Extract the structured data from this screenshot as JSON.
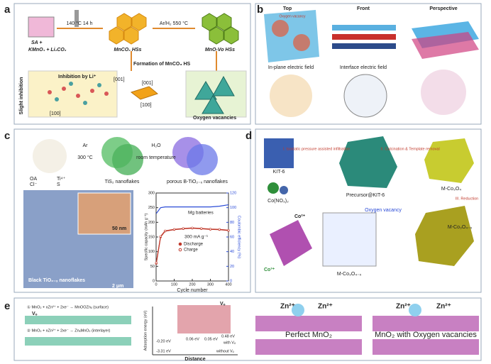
{
  "panels": {
    "a": {
      "label": "a",
      "texts": [
        "SA +",
        "KMnO₄ + Li₂CO₃",
        "140 °C 14 h",
        "MnCO₃ HSs",
        "Ar/H₂ 550 °C",
        "MnO-Vo HSs",
        "Formation of MnCO₃ HS",
        "Inhibition by Li⁺",
        "Slight inhibition",
        "[001]",
        "[100]",
        "[001]",
        "[100]",
        "Oxygen vacancies"
      ]
    },
    "b": {
      "label": "b",
      "texts": [
        "Top",
        "Front",
        "Perspective",
        "In-plane electric field",
        "Interface electric field",
        "Oxygen vacancy"
      ]
    },
    "c": {
      "label": "c",
      "texts": [
        "OA",
        "Ti⁴⁺",
        "Cl⁻",
        "S",
        "Ar",
        "300 °C",
        "H₂O",
        "room temperature",
        "TiS₂ nanoflakes",
        "porous B-TiO₂₋ₓ nanoflakes",
        "50 nm",
        "Black TiO₂₋ₓ nanoflakes",
        "2 μm"
      ],
      "chart": {
        "type": "line",
        "x_label": "Cycle number",
        "y_label": "Specific capacity (mAh g⁻¹)",
        "y2_label": "Coulombic efficiency (%)",
        "annotations": [
          "Mg batteries",
          "300 mA g⁻¹"
        ],
        "x": [
          1,
          25,
          50,
          100,
          150,
          200,
          250,
          300,
          350,
          400
        ],
        "xlim": [
          0,
          400
        ],
        "xticks": [
          0,
          100,
          200,
          300,
          400
        ],
        "ylim": [
          0,
          300
        ],
        "yticks": [
          0,
          50,
          100,
          150,
          200,
          250,
          300
        ],
        "y2lim": [
          0,
          120
        ],
        "y2ticks": [
          0,
          20,
          40,
          60,
          80,
          100,
          120
        ],
        "series": [
          {
            "name": "Discharge",
            "color": "#c0392b",
            "values": [
              60,
              150,
              170,
              175,
              178,
              180,
              178,
              176,
              175,
              172
            ]
          },
          {
            "name": "Charge",
            "color": "#c0392b",
            "values": [
              62,
              152,
              171,
              176,
              179,
              181,
              179,
              177,
              176,
              173
            ]
          },
          {
            "color": "#2a4bd7",
            "axis": "y2",
            "values": [
              92,
              100,
              101,
              101,
              101,
              101,
              101,
              101,
              102,
              104
            ]
          }
        ]
      }
    },
    "d": {
      "label": "d",
      "texts": [
        "KIT-6",
        "Co(NO₃)₂",
        "I. Isostatic pressure assisted infiltration",
        "Precursor@KIT-6",
        "II. Calcination & Template removal",
        "M-Co₃O₄",
        "III. Reduction",
        "Oxygen vacancy",
        "Co²⁺",
        "Co³⁺",
        "M-Co₃O₄₋ₓ",
        "M-Co₃O₄₋ₓ"
      ]
    },
    "e": {
      "label": "e",
      "texts": [
        "① MnO₂ + xZn²⁺ + 2xe⁻ → MnOOZnₓ (surface)",
        "② MnO₂ + xZn²⁺ + 2xe⁻ → ZnₓMnO₂ (interlayer)",
        "Vₒ",
        "Vₒ",
        "Adsorption energy (eV)",
        "Distance",
        "-0.20 eV",
        "-3.31 eV",
        "0.06 eV",
        "0.05 eV",
        "0.48 eV",
        "with Vₒ",
        "without Vₒ",
        "Zn²⁺",
        "Zn²⁺",
        "Zn²⁺",
        "Zn²⁺",
        "Perfect MnO₂",
        "MnO₂ with Oxygen vacancies"
      ]
    }
  }
}
